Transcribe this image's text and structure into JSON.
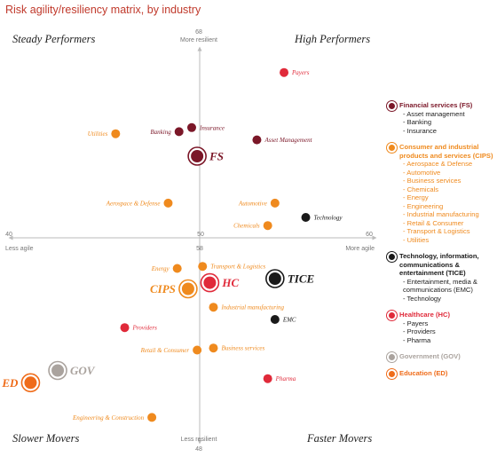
{
  "title": "Risk agility/resiliency matrix, by industry",
  "colors": {
    "financial": "#7b1728",
    "consumer": "#ef8a1e",
    "technology": "#1a1a1a",
    "healthcare": "#e02a3a",
    "government": "#aaa39e",
    "education": "#ef6c1a"
  },
  "chart_data": {
    "type": "scatter",
    "xlim": [
      40,
      60
    ],
    "ylim": [
      48,
      68
    ],
    "x_origin": 50,
    "y_origin": 58,
    "xlabel_left": "Less agile",
    "xlabel_right": "More agile",
    "ylabel_top": "More resilient",
    "ylabel_bottom": "Less resilient",
    "ticks": {
      "x_min": "40",
      "x_max": "60",
      "y_max": "68",
      "y_min": "48",
      "center": "58",
      "x_center": "50"
    },
    "quadrants": {
      "top_left": "Steady Performers",
      "top_right": "High Performers",
      "bottom_left": "Slower Movers",
      "bottom_right": "Faster Movers"
    },
    "points": [
      {
        "label": "Payers",
        "group": "healthcare",
        "x": 55.1,
        "y": 66.1,
        "label_side": "right"
      },
      {
        "label": "Banking",
        "group": "financial",
        "x": 49.3,
        "y": 63.2,
        "label_side": "left"
      },
      {
        "label": "Insurance",
        "group": "financial",
        "x": 50.0,
        "y": 63.4,
        "label_side": "right"
      },
      {
        "label": "Asset Management",
        "group": "financial",
        "x": 53.6,
        "y": 62.8,
        "label_side": "right"
      },
      {
        "label": "Utilities",
        "group": "consumer",
        "x": 45.8,
        "y": 63.1,
        "label_side": "left"
      },
      {
        "label": "Aerospace & Defense",
        "group": "consumer",
        "x": 48.7,
        "y": 59.7,
        "label_side": "left"
      },
      {
        "label": "Automotive",
        "group": "consumer",
        "x": 54.6,
        "y": 59.7,
        "label_side": "left"
      },
      {
        "label": "Chemicals",
        "group": "consumer",
        "x": 54.2,
        "y": 58.6,
        "label_side": "left"
      },
      {
        "label": "Technology",
        "group": "technology",
        "x": 56.3,
        "y": 59.0,
        "label_side": "right"
      },
      {
        "label": "Energy",
        "group": "consumer",
        "x": 49.2,
        "y": 56.5,
        "label_side": "left"
      },
      {
        "label": "Transport & Logistics",
        "group": "consumer",
        "x": 50.6,
        "y": 56.6,
        "label_side": "right"
      },
      {
        "label": "Industrial manufacturing",
        "group": "consumer",
        "x": 51.2,
        "y": 54.6,
        "label_side": "right"
      },
      {
        "label": "EMC",
        "group": "technology",
        "x": 54.6,
        "y": 54.0,
        "label_side": "right"
      },
      {
        "label": "Providers",
        "group": "healthcare",
        "x": 46.3,
        "y": 53.6,
        "label_side": "right"
      },
      {
        "label": "Retail & Consumer",
        "group": "consumer",
        "x": 50.3,
        "y": 52.5,
        "label_side": "left"
      },
      {
        "label": "Business services",
        "group": "consumer",
        "x": 51.2,
        "y": 52.6,
        "label_side": "right"
      },
      {
        "label": "Pharma",
        "group": "healthcare",
        "x": 54.2,
        "y": 51.1,
        "label_side": "right"
      },
      {
        "label": "Engineering & Construction",
        "group": "consumer",
        "x": 47.8,
        "y": 49.2,
        "label_side": "left"
      }
    ],
    "aggregates": [
      {
        "label": "FS",
        "group": "financial",
        "x": 50.3,
        "y": 62.0,
        "label_side": "right"
      },
      {
        "label": "CIPS",
        "group": "consumer",
        "x": 49.8,
        "y": 55.5,
        "label_side": "left"
      },
      {
        "label": "HC",
        "group": "healthcare",
        "x": 51.0,
        "y": 55.8,
        "label_side": "right"
      },
      {
        "label": "TICE",
        "group": "technology",
        "x": 54.6,
        "y": 56.0,
        "label_side": "right"
      },
      {
        "label": "GOV",
        "group": "government",
        "x": 42.6,
        "y": 51.5,
        "label_side": "right"
      },
      {
        "label": "ED",
        "group": "education",
        "x": 41.1,
        "y": 50.9,
        "label_side": "left"
      }
    ]
  },
  "legend": [
    {
      "group": "financial",
      "title": "Financial services (FS)",
      "items": [
        "Asset management",
        "Banking",
        "Insurance"
      ]
    },
    {
      "group": "consumer",
      "title": "Consumer and industrial products and services (CIPS)",
      "items": [
        "Aerospace & Defense",
        "Automotive",
        "Business services",
        "Chemicals",
        "Energy",
        "Engineering",
        "Industrial manufacturing",
        "Retail & Consumer",
        "Transport & Logistics",
        "Utilities"
      ]
    },
    {
      "group": "technology",
      "title": "Technology, information, communications & entertainment (TICE)",
      "items": [
        "Entertainment, media & communications (EMC)",
        "Technology"
      ]
    },
    {
      "group": "healthcare",
      "title": "Healthcare (HC)",
      "items": [
        "Payers",
        "Providers",
        "Pharma"
      ]
    },
    {
      "group": "government",
      "title": "Government (GOV)",
      "items": []
    },
    {
      "group": "education",
      "title": "Education (ED)",
      "items": []
    }
  ]
}
